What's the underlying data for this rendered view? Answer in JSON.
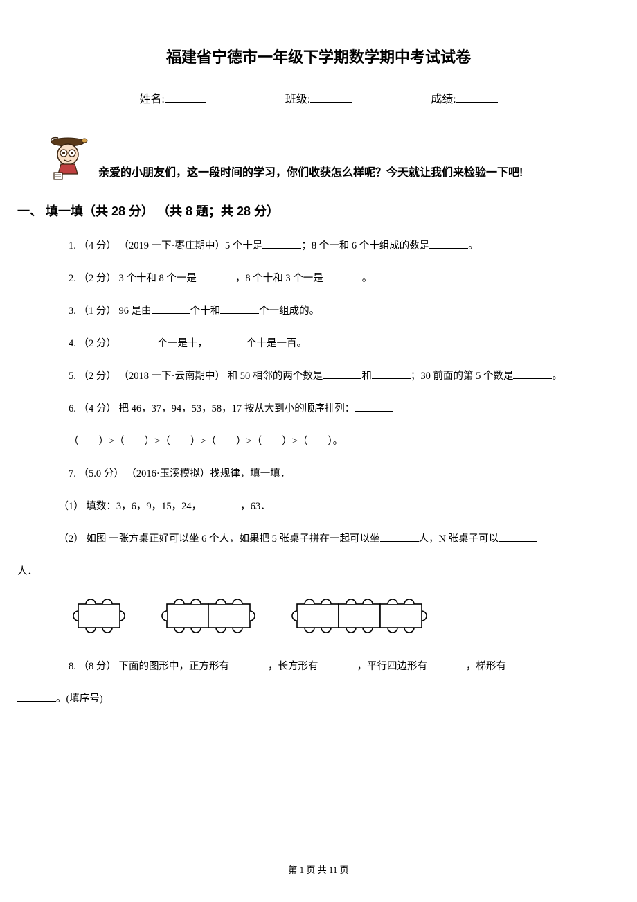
{
  "title": "福建省宁德市一年级下学期数学期中考试试卷",
  "info": {
    "name_label": "姓名:",
    "class_label": "班级:",
    "score_label": "成绩:"
  },
  "intro": "亲爱的小朋友们，这一段时间的学习，你们收获怎么样呢？今天就让我们来检验一下吧!",
  "section1": {
    "heading": "一、 填一填（共 28 分） （共 8 题；共 28 分）"
  },
  "q1": {
    "prefix": "1. （4 分） （2019 一下·枣庄期中）5 个十是",
    "mid": "；8 个一和 6 个十组成的数是",
    "suffix": "。"
  },
  "q2": {
    "prefix": "2. （2 分） 3 个十和 8 个一是",
    "mid": "，8 个十和 3 个一是",
    "suffix": "。"
  },
  "q3": {
    "prefix": "3. （1 分） 96 是由",
    "mid": "个十和",
    "suffix": "个一组成的。"
  },
  "q4": {
    "prefix": "4. （2 分） ",
    "mid": "个一是十，",
    "suffix": "个十是一百。"
  },
  "q5": {
    "prefix": "5. （2 分） （2018 一下·云南期中） 和 50 相邻的两个数是",
    "mid1": "和",
    "mid2": "；30 前面的第 5 个数是",
    "suffix": "。"
  },
  "q6": {
    "line1_prefix": "6. （4 分） 把 46，37，94，53，58，17 按从大到小的顺序排列：",
    "line2": "（　　）>（　　）>（　　）>（　　）>（　　）>（　　）。"
  },
  "q7": {
    "head": "7. （5.0 分） （2016·玉溪模拟）找规律，填一填．",
    "sub1_prefix": "（1） 填数：3，6，9，15，24，",
    "sub1_suffix": "，63．",
    "sub2_prefix": "（2） 如图 一张方桌正好可以坐 6 个人，如果把 5 张桌子拼在一起可以坐",
    "sub2_mid": "人，N 张桌子可以",
    "sub2_tail": "人．"
  },
  "q8": {
    "prefix": "8. （8 分） 下面的图形中，正方形有",
    "mid1": "，长方形有",
    "mid2": "，平行四边形有",
    "mid3": "，梯形有",
    "suffix": "。(填序号)"
  },
  "footer": "第 1 页 共 11 页",
  "colors": {
    "text": "#000000",
    "background": "#ffffff",
    "line": "#000000"
  },
  "tables": {
    "chair_radius": 7,
    "unit_width": 60,
    "height": 34,
    "stroke": "#000000",
    "stroke_width": 1.6,
    "fill": "#ffffff"
  }
}
